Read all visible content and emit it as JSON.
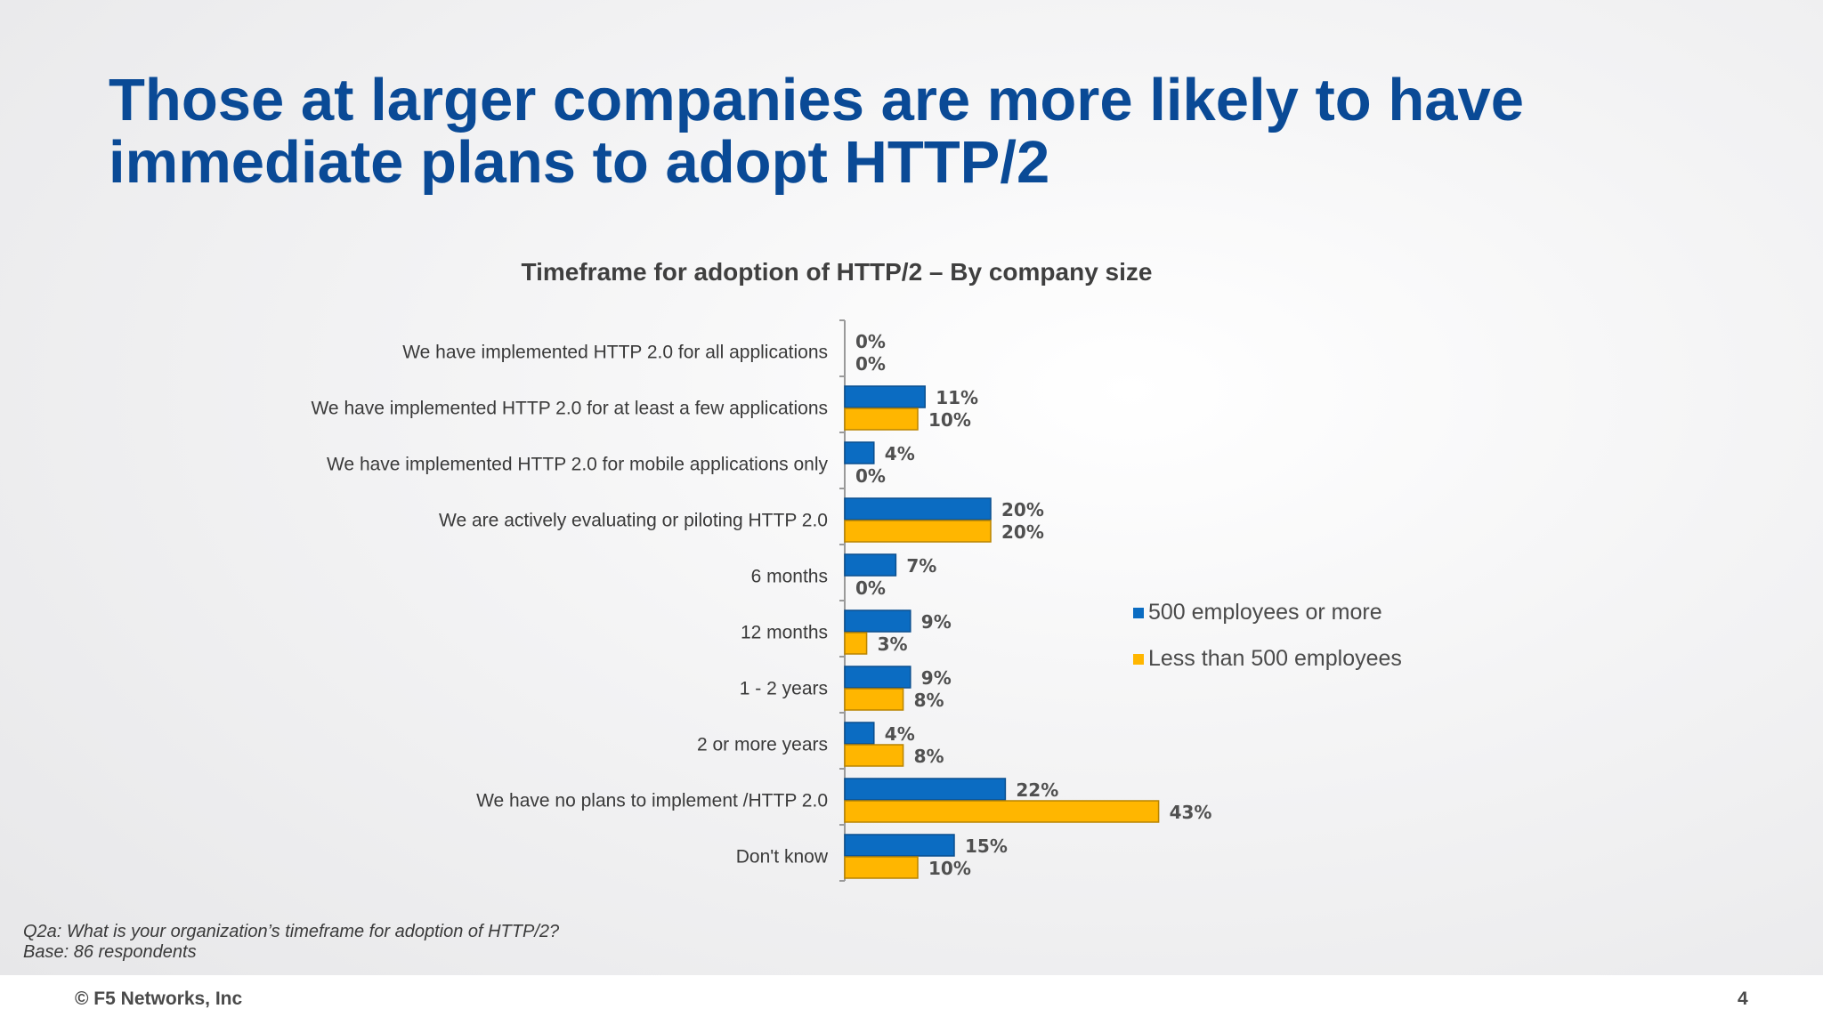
{
  "slide": {
    "title_line1": "Those at larger companies are more likely to have",
    "title_line2": "immediate plans to adopt HTTP/2",
    "footnote_line1": "Q2a: What is your organization’s timeframe for adoption of HTTP/2?",
    "footnote_line2": "Base: 86 respondents",
    "copyright": "© F5 Networks, Inc",
    "page_number": "4"
  },
  "chart_data": {
    "type": "bar",
    "orientation": "horizontal",
    "title": "Timeframe for adoption of HTTP/2 – By company size",
    "categories": [
      "We have implemented HTTP 2.0 for all applications",
      "We have implemented HTTP 2.0 for at least a few applications",
      "We have implemented HTTP 2.0 for mobile applications only",
      "We are actively evaluating or piloting HTTP 2.0",
      "6 months",
      "12 months",
      "1 - 2 years",
      "2 or more years",
      "We have no plans to implement /HTTP 2.0",
      "Don't know"
    ],
    "series": [
      {
        "name": "500 employees or more",
        "color": "#0b6cc2",
        "values": [
          0,
          11,
          4,
          20,
          7,
          9,
          9,
          4,
          22,
          15
        ],
        "labels": [
          "0%",
          "11%",
          "4%",
          "20%",
          "7%",
          "9%",
          "9%",
          "4%",
          "22%",
          "15%"
        ]
      },
      {
        "name": "Less than 500 employees",
        "color": "#ffb600",
        "values": [
          0,
          10,
          0,
          20,
          0,
          3,
          8,
          8,
          43,
          10
        ],
        "labels": [
          "0%",
          "10%",
          "0%",
          "20%",
          "0%",
          "3%",
          "8%",
          "8%",
          "43%",
          "10%"
        ]
      }
    ],
    "unit": "%",
    "legend_position": "right",
    "grid": false
  }
}
